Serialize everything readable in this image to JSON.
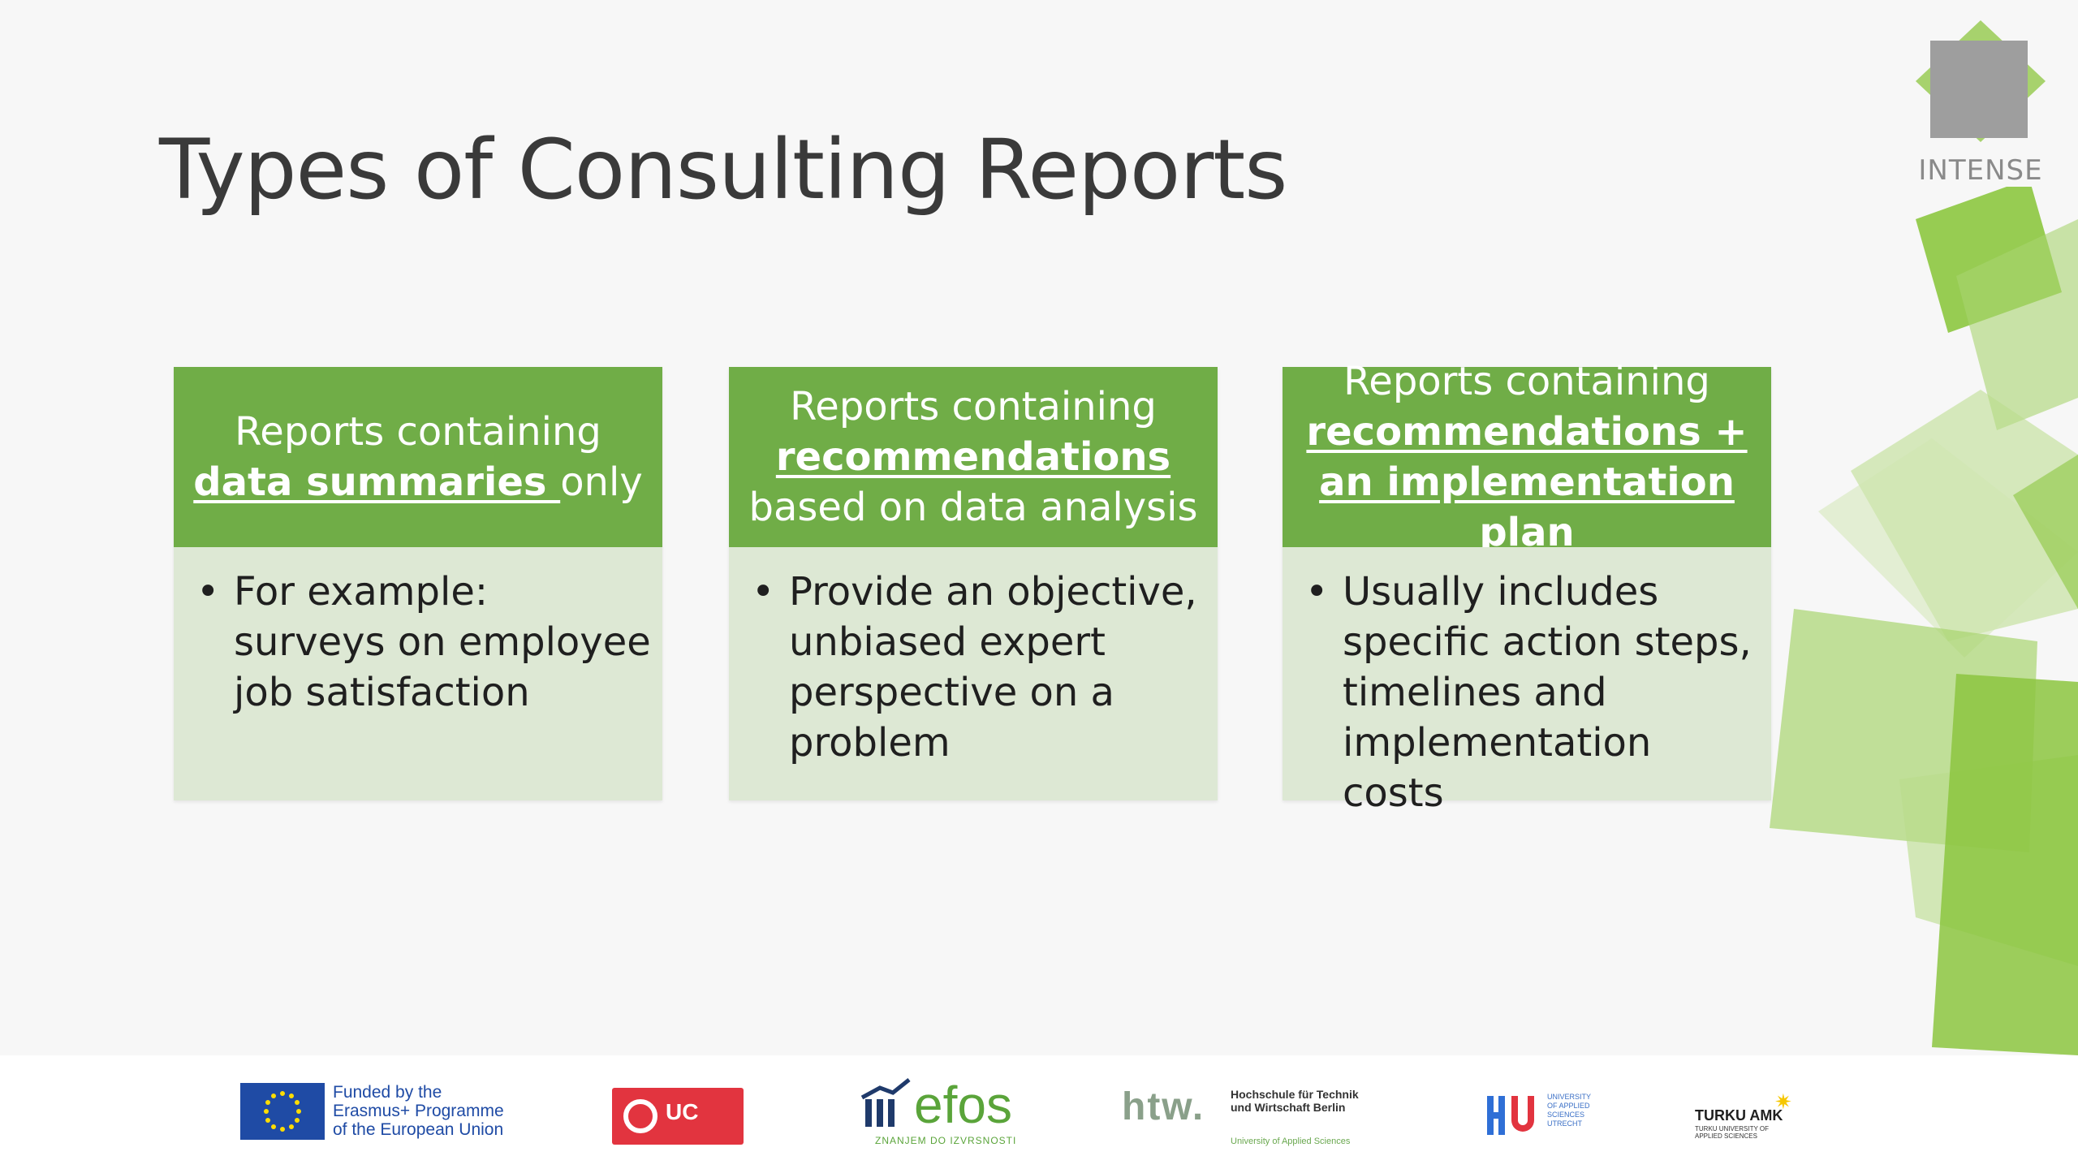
{
  "slide": {
    "title": "Types of Consulting Reports"
  },
  "logo": {
    "name": "INTENSE"
  },
  "cards": [
    {
      "head_line1": "Reports containing",
      "head_emph": "data summaries ",
      "head_tail": "only",
      "bullet": "For example: surveys on employee job satisfaction"
    },
    {
      "head_line1": "Reports containing",
      "head_emph": "recommendations",
      "head_tail": "based on data analysis",
      "bullet": "Provide an objective, unbiased expert perspective on a problem"
    },
    {
      "head_line1": "Reports containing",
      "head_emph": "recommendations + an implementation plan",
      "head_tail": "",
      "bullet": "Usually includes specific action steps, timelines and implementation costs"
    }
  ],
  "footer": {
    "eu_text": "Funded by the\nErasmus+ Programme\nof the European Union",
    "ucll": "UC",
    "efos": "efos",
    "efos_sub": "ZNANJEM DO IZVRSNOSTI",
    "htw": "htw.",
    "htw_sub": "Hochschule für Technik\nund Wirtschaft Berlin",
    "htw_sub2": "University of Applied Sciences",
    "hu_sub": "UNIVERSITY\nOF APPLIED\nSCIENCES\nUTRECHT",
    "turku": "TURKU AMK",
    "turku_sub": "TURKU UNIVERSITY OF\nAPPLIED SCIENCES"
  },
  "colors": {
    "accent": "#70ad47",
    "card_body": "#dde8d4",
    "title": "#3a3a3a"
  }
}
